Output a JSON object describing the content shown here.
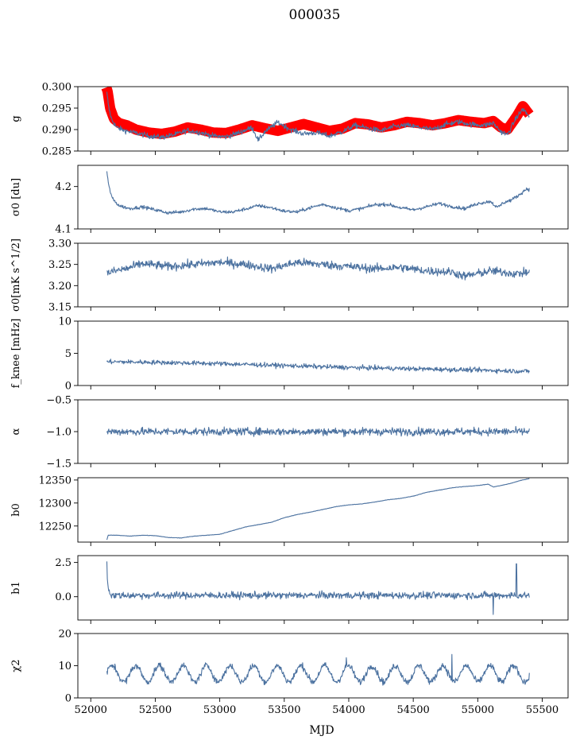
{
  "title": "000035",
  "xlabel": "MJD",
  "colors": {
    "series": "#4c72a0",
    "fit": "#ff0000",
    "axis": "#000000"
  },
  "chart_data": {
    "type": "line",
    "xlim": [
      51900,
      55700
    ],
    "x_ticks": [
      52000,
      52500,
      53000,
      53500,
      54000,
      54500,
      55000,
      55500
    ],
    "x_tick_labels": [
      "52000",
      "52500",
      "53000",
      "53500",
      "54000",
      "54500",
      "55000",
      "55500"
    ],
    "xlabel": "MJD",
    "x_range": [
      52120,
      55400
    ],
    "grid": false,
    "panels": [
      {
        "name": "g",
        "ylabel": "g",
        "ylim": [
          0.285,
          0.3
        ],
        "yticks": [
          0.285,
          0.29,
          0.295,
          0.3
        ],
        "ytick_labels": [
          "0.285",
          "0.290",
          "0.295",
          "0.300"
        ],
        "series": [
          {
            "role": "model",
            "color": "#ff0000",
            "points": [
              [
                52120,
                0.2998
              ],
              [
                52130,
                0.299
              ],
              [
                52150,
                0.295
              ],
              [
                52180,
                0.2925
              ],
              [
                52220,
                0.2915
              ],
              [
                52280,
                0.291
              ],
              [
                52350,
                0.29
              ],
              [
                52450,
                0.2893
              ],
              [
                52550,
                0.289
              ],
              [
                52650,
                0.2895
              ],
              [
                52750,
                0.2905
              ],
              [
                52850,
                0.29
              ],
              [
                52950,
                0.2893
              ],
              [
                53050,
                0.2892
              ],
              [
                53150,
                0.29
              ],
              [
                53250,
                0.291
              ],
              [
                53350,
                0.2903
              ],
              [
                53450,
                0.2897
              ],
              [
                53550,
                0.2905
              ],
              [
                53650,
                0.2913
              ],
              [
                53750,
                0.2905
              ],
              [
                53850,
                0.2897
              ],
              [
                53950,
                0.2902
              ],
              [
                54050,
                0.2915
              ],
              [
                54150,
                0.2912
              ],
              [
                54250,
                0.2905
              ],
              [
                54350,
                0.291
              ],
              [
                54450,
                0.2918
              ],
              [
                54550,
                0.2915
              ],
              [
                54650,
                0.291
              ],
              [
                54750,
                0.2915
              ],
              [
                54850,
                0.2922
              ],
              [
                54950,
                0.2918
              ],
              [
                55050,
                0.2915
              ],
              [
                55120,
                0.292
              ],
              [
                55180,
                0.2905
              ],
              [
                55230,
                0.29
              ],
              [
                55300,
                0.293
              ],
              [
                55350,
                0.2955
              ],
              [
                55400,
                0.2935
              ]
            ],
            "band": 0.0012
          },
          {
            "role": "data",
            "color": "#4c72a0",
            "points": [
              [
                52125,
                0.2985
              ],
              [
                52140,
                0.295
              ],
              [
                52160,
                0.2925
              ],
              [
                52200,
                0.2905
              ],
              [
                52260,
                0.2898
              ],
              [
                52350,
                0.2892
              ],
              [
                52450,
                0.2885
              ],
              [
                52550,
                0.2882
              ],
              [
                52650,
                0.2888
              ],
              [
                52750,
                0.2898
              ],
              [
                52850,
                0.2893
              ],
              [
                52950,
                0.2885
              ],
              [
                53050,
                0.2883
              ],
              [
                53150,
                0.2893
              ],
              [
                53250,
                0.2905
              ],
              [
                53300,
                0.2875
              ],
              [
                53350,
                0.2895
              ],
              [
                53450,
                0.2917
              ],
              [
                53550,
                0.29
              ],
              [
                53650,
                0.289
              ],
              [
                53750,
                0.2893
              ],
              [
                53850,
                0.2885
              ],
              [
                53950,
                0.2895
              ],
              [
                54050,
                0.291
              ],
              [
                54150,
                0.2903
              ],
              [
                54250,
                0.2897
              ],
              [
                54350,
                0.2907
              ],
              [
                54450,
                0.291
              ],
              [
                54550,
                0.2905
              ],
              [
                54650,
                0.29
              ],
              [
                54750,
                0.2912
              ],
              [
                54850,
                0.2918
              ],
              [
                54950,
                0.2912
              ],
              [
                55050,
                0.291
              ],
              [
                55120,
                0.2915
              ],
              [
                55180,
                0.2895
              ],
              [
                55230,
                0.2888
              ],
              [
                55300,
                0.2928
              ],
              [
                55350,
                0.2948
              ],
              [
                55400,
                0.293
              ]
            ],
            "noise": 0.0006
          }
        ]
      },
      {
        "name": "sigma0-du",
        "ylabel": "σ0 [du]",
        "ylim": [
          4.1,
          4.25
        ],
        "yticks": [
          4.1,
          4.2
        ],
        "ytick_labels": [
          "4.1",
          "4.2"
        ],
        "series": [
          {
            "role": "data",
            "color": "#4c72a0",
            "points": [
              [
                52125,
                4.235
              ],
              [
                52140,
                4.2
              ],
              [
                52170,
                4.17
              ],
              [
                52220,
                4.155
              ],
              [
                52300,
                4.148
              ],
              [
                52400,
                4.152
              ],
              [
                52500,
                4.145
              ],
              [
                52600,
                4.138
              ],
              [
                52700,
                4.14
              ],
              [
                52800,
                4.147
              ],
              [
                52900,
                4.148
              ],
              [
                53000,
                4.14
              ],
              [
                53100,
                4.14
              ],
              [
                53200,
                4.147
              ],
              [
                53300,
                4.155
              ],
              [
                53400,
                4.15
              ],
              [
                53500,
                4.142
              ],
              [
                53600,
                4.14
              ],
              [
                53700,
                4.15
              ],
              [
                53800,
                4.158
              ],
              [
                53900,
                4.15
              ],
              [
                54000,
                4.143
              ],
              [
                54100,
                4.148
              ],
              [
                54200,
                4.157
              ],
              [
                54300,
                4.158
              ],
              [
                54400,
                4.15
              ],
              [
                54500,
                4.145
              ],
              [
                54600,
                4.152
              ],
              [
                54700,
                4.16
              ],
              [
                54800,
                4.153
              ],
              [
                54900,
                4.148
              ],
              [
                55000,
                4.16
              ],
              [
                55100,
                4.165
              ],
              [
                55150,
                4.15
              ],
              [
                55200,
                4.162
              ],
              [
                55260,
                4.168
              ],
              [
                55320,
                4.18
              ],
              [
                55380,
                4.195
              ],
              [
                55400,
                4.193
              ]
            ],
            "noise": 0.004
          }
        ]
      },
      {
        "name": "sigma0-mk",
        "ylabel": "σ0[mK s^1/2]",
        "ylim": [
          3.15,
          3.3
        ],
        "yticks": [
          3.15,
          3.2,
          3.25,
          3.3
        ],
        "ytick_labels": [
          "3.15",
          "3.20",
          "3.25",
          "3.30"
        ],
        "series": [
          {
            "role": "data",
            "color": "#4c72a0",
            "points": [
              [
                52125,
                3.23
              ],
              [
                52300,
                3.242
              ],
              [
                52400,
                3.252
              ],
              [
                52600,
                3.245
              ],
              [
                52800,
                3.25
              ],
              [
                53000,
                3.255
              ],
              [
                53200,
                3.25
              ],
              [
                53400,
                3.24
              ],
              [
                53600,
                3.255
              ],
              [
                53800,
                3.25
              ],
              [
                54000,
                3.245
              ],
              [
                54200,
                3.24
              ],
              [
                54400,
                3.243
              ],
              [
                54600,
                3.235
              ],
              [
                54800,
                3.232
              ],
              [
                54900,
                3.222
              ],
              [
                55100,
                3.235
              ],
              [
                55300,
                3.228
              ],
              [
                55400,
                3.232
              ]
            ],
            "noise": 0.01
          }
        ]
      },
      {
        "name": "fknee",
        "ylabel": "f_knee [mHz]",
        "ylim": [
          0,
          10
        ],
        "yticks": [
          0,
          5,
          10
        ],
        "ytick_labels": [
          "0",
          "5",
          "10"
        ],
        "series": [
          {
            "role": "data",
            "color": "#4c72a0",
            "points": [
              [
                52125,
                3.7
              ],
              [
                52500,
                3.6
              ],
              [
                53000,
                3.4
              ],
              [
                53500,
                3.1
              ],
              [
                54000,
                2.8
              ],
              [
                54500,
                2.6
              ],
              [
                55000,
                2.4
              ],
              [
                55400,
                2.2
              ]
            ],
            "noise": 0.35
          }
        ]
      },
      {
        "name": "alpha",
        "ylabel": "α",
        "ylim": [
          -1.5,
          -0.5
        ],
        "yticks": [
          -1.5,
          -1.0,
          -0.5
        ],
        "ytick_labels": [
          "−1.5",
          "−1.0",
          "−0.5"
        ],
        "series": [
          {
            "role": "data",
            "color": "#4c72a0",
            "points": [
              [
                52125,
                -1.0
              ],
              [
                55400,
                -1.0
              ]
            ],
            "noise": 0.06
          }
        ]
      },
      {
        "name": "b0",
        "ylabel": "b0",
        "ylim": [
          12215,
          12355
        ],
        "yticks": [
          12250,
          12300,
          12350
        ],
        "ytick_labels": [
          "12250",
          "12300",
          "12350"
        ],
        "series": [
          {
            "role": "data",
            "color": "#4c72a0",
            "points": [
              [
                52125,
                12220
              ],
              [
                52135,
                12230
              ],
              [
                52200,
                12230
              ],
              [
                52300,
                12228
              ],
              [
                52400,
                12230
              ],
              [
                52500,
                12229
              ],
              [
                52600,
                12225
              ],
              [
                52700,
                12224
              ],
              [
                52800,
                12228
              ],
              [
                52900,
                12230
              ],
              [
                53000,
                12232
              ],
              [
                53100,
                12240
              ],
              [
                53200,
                12248
              ],
              [
                53300,
                12253
              ],
              [
                53400,
                12258
              ],
              [
                53500,
                12268
              ],
              [
                53600,
                12275
              ],
              [
                53700,
                12280
              ],
              [
                53800,
                12286
              ],
              [
                53900,
                12292
              ],
              [
                54000,
                12296
              ],
              [
                54100,
                12298
              ],
              [
                54200,
                12302
              ],
              [
                54300,
                12307
              ],
              [
                54400,
                12310
              ],
              [
                54500,
                12315
              ],
              [
                54600,
                12323
              ],
              [
                54700,
                12328
              ],
              [
                54800,
                12333
              ],
              [
                54900,
                12336
              ],
              [
                55000,
                12338
              ],
              [
                55080,
                12341
              ],
              [
                55120,
                12335
              ],
              [
                55180,
                12338
              ],
              [
                55260,
                12343
              ],
              [
                55330,
                12349
              ],
              [
                55400,
                12353
              ]
            ],
            "noise": 0.4
          }
        ]
      },
      {
        "name": "b1",
        "ylabel": "b1",
        "ylim": [
          -1.7,
          3.0
        ],
        "yticks": [
          0.0,
          2.5
        ],
        "ytick_labels": [
          "0.0",
          "2.5"
        ],
        "series": [
          {
            "role": "data",
            "color": "#4c72a0",
            "points": [
              [
                52125,
                2.7
              ],
              [
                52130,
                1.0
              ],
              [
                52140,
                0.5
              ],
              [
                52160,
                0.1
              ],
              [
                55400,
                0.1
              ]
            ],
            "noise": 0.25,
            "spikes": [
              [
                55120,
                -1.3
              ],
              [
                55300,
                2.4
              ]
            ]
          }
        ]
      },
      {
        "name": "chi2",
        "ylabel": "χ2",
        "ylim": [
          0,
          20
        ],
        "yticks": [
          0,
          10,
          20
        ],
        "ytick_labels": [
          "0",
          "10",
          "20"
        ],
        "series": [
          {
            "role": "data",
            "color": "#4c72a0",
            "points": [
              [
                52125,
                7.5
              ],
              [
                55400,
                7.5
              ]
            ],
            "noise": 1.0,
            "oscillation": {
              "amplitude": 2.5,
              "period_days": 183
            },
            "spikes": [
              [
                53980,
                12.5
              ],
              [
                54800,
                13.5
              ]
            ]
          }
        ]
      }
    ]
  }
}
